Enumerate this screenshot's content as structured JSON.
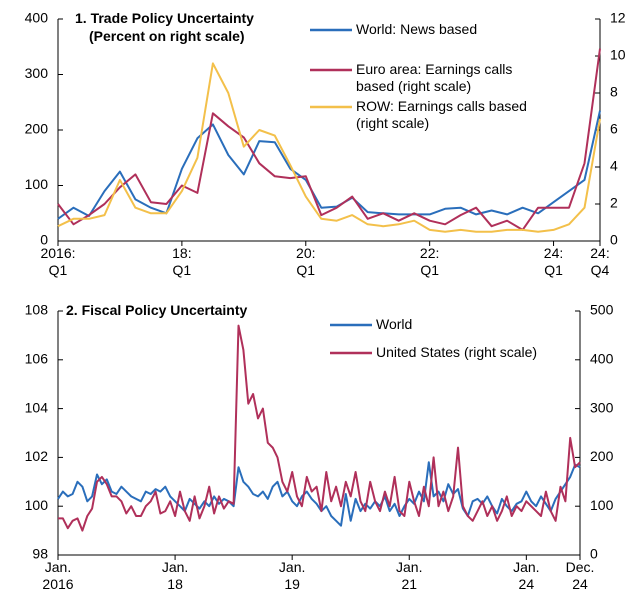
{
  "chart_data": [
    {
      "type": "line",
      "title": "1. Trade Policy Uncertainty",
      "subtitle": "(Percent on right scale)",
      "categories": [
        "2016:\nQ1",
        null,
        null,
        null,
        null,
        null,
        null,
        null,
        "18:\nQ1",
        null,
        null,
        null,
        null,
        null,
        null,
        null,
        "20:\nQ1",
        null,
        null,
        null,
        null,
        null,
        null,
        null,
        "22:\nQ1",
        null,
        null,
        null,
        null,
        null,
        null,
        null,
        "24:\nQ1",
        null,
        null,
        "24:\nQ4"
      ],
      "series": [
        {
          "name": "World: News based",
          "color": "#2a6ebb",
          "axis": "y",
          "values": [
            40,
            60,
            45,
            90,
            125,
            75,
            60,
            50,
            130,
            185,
            210,
            155,
            120,
            180,
            178,
            130,
            110,
            60,
            62,
            78,
            52,
            50,
            48,
            48,
            48,
            58,
            60,
            48,
            55,
            48,
            60,
            50,
            70,
            90,
            110,
            235
          ]
        },
        {
          "name": "Euro area: Earnings calls\nbased (right scale)",
          "color": "#b0305a",
          "axis": "y2",
          "values": [
            2.0,
            0.9,
            1.4,
            2.0,
            2.9,
            3.6,
            2.1,
            2.0,
            3.0,
            2.6,
            6.9,
            6.2,
            5.6,
            4.2,
            3.5,
            3.4,
            3.5,
            1.4,
            1.8,
            2.4,
            1.2,
            1.5,
            1.1,
            1.5,
            1.1,
            0.9,
            1.4,
            1.8,
            0.8,
            1.1,
            0.6,
            1.8,
            1.8,
            1.8,
            4.2,
            10.4
          ]
        },
        {
          "name": "ROW: Earnings calls based\n(right scale)",
          "color": "#f3c04a",
          "axis": "y2",
          "values": [
            0.8,
            1.2,
            1.2,
            1.4,
            3.3,
            1.8,
            1.5,
            1.5,
            2.7,
            4.5,
            9.6,
            8.0,
            5.1,
            6.0,
            5.7,
            4.1,
            2.4,
            1.2,
            1.1,
            1.4,
            0.9,
            0.8,
            0.9,
            1.1,
            0.6,
            0.5,
            0.6,
            0.5,
            0.5,
            0.6,
            0.6,
            0.5,
            0.6,
            0.9,
            1.8,
            6.6
          ]
        }
      ],
      "ylim": [
        0,
        400
      ],
      "yticks": [
        0,
        100,
        200,
        300,
        400
      ],
      "y2lim": [
        0,
        12
      ],
      "y2ticks": [
        0,
        2,
        4,
        6,
        8,
        10,
        12
      ]
    },
    {
      "type": "line",
      "title": "2. Fiscal Policy Uncertainty",
      "categories": [
        "Jan.\n2016",
        null,
        null,
        null,
        null,
        null,
        null,
        null,
        null,
        null,
        null,
        null,
        null,
        null,
        null,
        null,
        null,
        null,
        null,
        null,
        null,
        null,
        null,
        null,
        "Jan.\n18",
        null,
        null,
        null,
        null,
        null,
        null,
        null,
        null,
        null,
        null,
        null,
        null,
        null,
        null,
        null,
        null,
        null,
        null,
        null,
        null,
        null,
        null,
        null,
        "Jan.\n19",
        null,
        null,
        null,
        null,
        null,
        null,
        null,
        null,
        null,
        null,
        null,
        null,
        null,
        null,
        null,
        null,
        null,
        null,
        null,
        null,
        null,
        null,
        null,
        "Jan.\n21",
        null,
        null,
        null,
        null,
        null,
        null,
        null,
        null,
        null,
        null,
        null,
        null,
        null,
        null,
        null,
        null,
        null,
        null,
        null,
        null,
        null,
        null,
        null,
        "Jan.\n24",
        null,
        null,
        null,
        null,
        null,
        null,
        null,
        null,
        null,
        null,
        "Dec.\n24"
      ],
      "series": [
        {
          "name": "World",
          "color": "#2a6ebb",
          "axis": "y",
          "values": [
            100.3,
            100.6,
            100.4,
            100.5,
            101.0,
            100.8,
            100.2,
            100.4,
            101.3,
            100.9,
            101.1,
            100.6,
            100.5,
            100.8,
            100.6,
            100.4,
            100.3,
            100.2,
            100.6,
            100.5,
            100.7,
            100.6,
            100.8,
            100.4,
            100.2,
            100.0,
            99.8,
            100.3,
            100.1,
            99.9,
            100.2,
            100.0,
            100.4,
            100.1,
            100.3,
            100.2,
            100.0,
            101.6,
            101.0,
            100.8,
            100.5,
            100.4,
            100.6,
            100.3,
            100.8,
            101.0,
            100.4,
            100.6,
            100.2,
            100.0,
            100.4,
            100.6,
            100.3,
            100.1,
            99.8,
            100.0,
            99.6,
            99.4,
            99.2,
            100.5,
            99.4,
            100.3,
            99.8,
            100.1,
            99.9,
            100.2,
            100.0,
            100.4,
            99.8,
            100.1,
            99.6,
            100.0,
            100.3,
            100.1,
            100.6,
            100.2,
            101.8,
            100.4,
            100.6,
            100.2,
            100.9,
            100.5,
            100.7,
            99.9,
            99.6,
            100.2,
            100.3,
            100.1,
            100.4,
            100.0,
            99.7,
            100.3,
            100.0,
            99.8,
            100.1,
            100.2,
            100.6,
            100.2,
            100.0,
            100.4,
            100.1,
            99.8,
            100.3,
            100.6,
            100.9,
            101.2,
            101.7,
            101.6
          ]
        },
        {
          "name": "United States (right scale)",
          "color": "#b0305a",
          "axis": "y2",
          "values": [
            75,
            75,
            55,
            70,
            75,
            50,
            80,
            95,
            150,
            160,
            145,
            120,
            120,
            110,
            85,
            100,
            80,
            80,
            100,
            110,
            130,
            85,
            90,
            110,
            80,
            130,
            90,
            70,
            120,
            75,
            100,
            140,
            85,
            120,
            95,
            110,
            105,
            470,
            420,
            310,
            330,
            280,
            300,
            230,
            220,
            200,
            150,
            130,
            170,
            120,
            100,
            160,
            130,
            140,
            90,
            170,
            110,
            140,
            100,
            150,
            120,
            170,
            110,
            90,
            150,
            110,
            90,
            130,
            100,
            160,
            90,
            80,
            150,
            110,
            80,
            140,
            100,
            200,
            100,
            130,
            90,
            120,
            220,
            100,
            80,
            70,
            90,
            110,
            80,
            100,
            70,
            90,
            120,
            80,
            100,
            90,
            110,
            100,
            90,
            80,
            130,
            90,
            70,
            140,
            110,
            240,
            180,
            190
          ]
        }
      ],
      "ylim": [
        98,
        108
      ],
      "yticks": [
        98,
        100,
        102,
        104,
        106,
        108
      ],
      "y2lim": [
        0,
        500
      ],
      "y2ticks": [
        0,
        100,
        200,
        300,
        400,
        500
      ]
    }
  ]
}
